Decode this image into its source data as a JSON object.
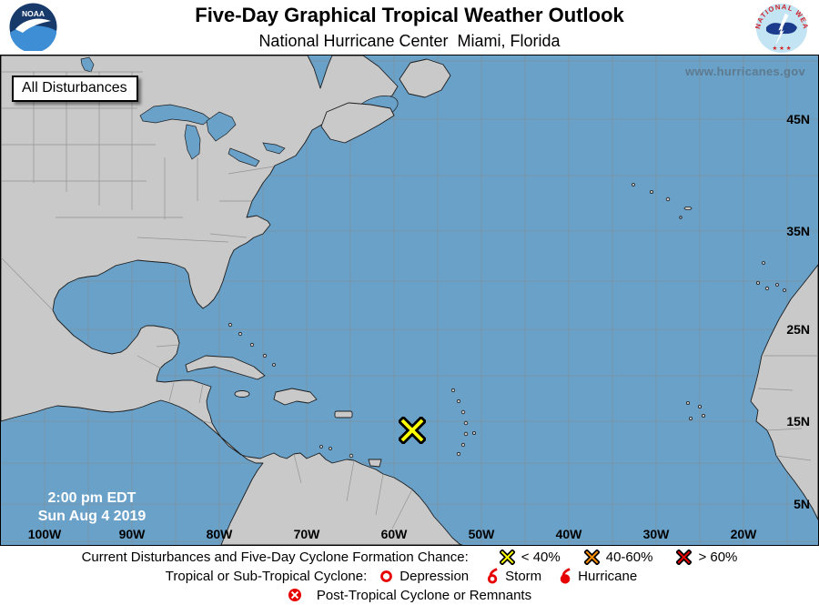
{
  "header": {
    "title": "Five-Day Graphical Tropical Weather Outlook",
    "subtitle": "National Hurricane Center  Miami, Florida",
    "noaa_logo_text": "NOAA",
    "nws_logo_text": "NATIONAL WEATHER SERVICE",
    "nws_logo_stars": "★ ★ ★"
  },
  "map": {
    "overlay_label": "All Disturbances",
    "watermark": "www.hurricanes.gov",
    "timestamp_line1": "2:00 pm EDT",
    "timestamp_line2": "Sun Aug 4 2019",
    "lat_labels": [
      "45N",
      "35N",
      "25N",
      "15N",
      "5N"
    ],
    "lon_labels": [
      "100W",
      "90W",
      "80W",
      "70W",
      "60W",
      "50W",
      "40W",
      "30W",
      "20W"
    ],
    "disturbance_marker": {
      "type": "yellow-x",
      "formation_chance": "< 40%",
      "approx_location": "14N 58W"
    },
    "colors": {
      "water": "#69a1c8",
      "land": "#c9c9c9",
      "coastline": "#1d1d1d",
      "grid": "#7d95a6",
      "marker_yellow": "#ffff00"
    }
  },
  "legend": {
    "line1_label": "Current Disturbances and Five-Day Cyclone Formation Chance:",
    "line1_items": [
      {
        "icon": "yellow-x",
        "color": "#ffff00",
        "label": "< 40%"
      },
      {
        "icon": "orange-x",
        "color": "#ff9000",
        "label": "40-60%"
      },
      {
        "icon": "red-x",
        "color": "#e60000",
        "label": "> 60%"
      }
    ],
    "line2_label": "Tropical or Sub-Tropical Cyclone:",
    "line2_items": [
      {
        "icon": "depression-circle",
        "label": "Depression"
      },
      {
        "icon": "storm-symbol",
        "label": "Storm"
      },
      {
        "icon": "hurricane-symbol",
        "label": "Hurricane"
      }
    ],
    "line3_item": {
      "icon": "post-tropical-circle-x",
      "label": "Post-Tropical Cyclone or Remnants"
    },
    "icon_red": "#e60000"
  }
}
